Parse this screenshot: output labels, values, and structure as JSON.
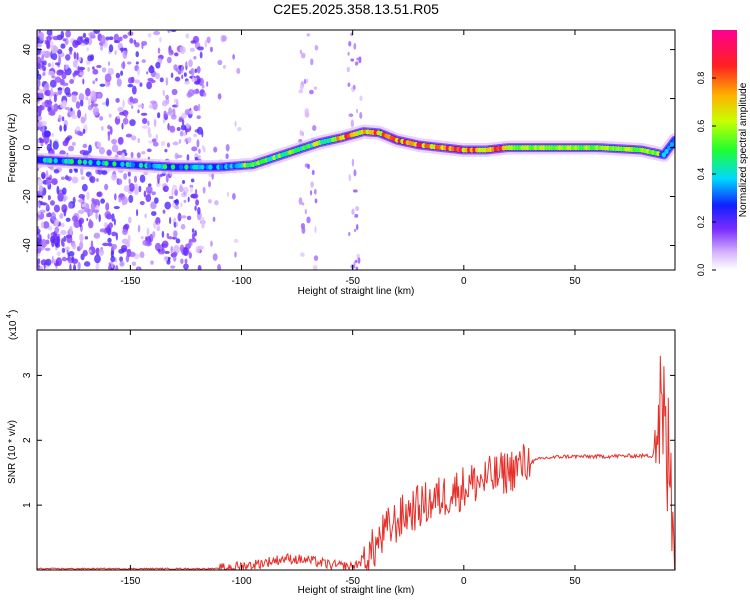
{
  "title": "C2E5.2025.358.13.51.R05",
  "chart_data": [
    {
      "type": "heatmap",
      "xlabel": "Height of straight line (km)",
      "ylabel": "Frequency (Hz)",
      "xlim": [
        -192,
        95
      ],
      "ylim": [
        -50,
        48
      ],
      "xticks": [
        "-150",
        "-100",
        "-50",
        "0",
        "50"
      ],
      "yticks": [
        "-40",
        "-20",
        "0",
        "20",
        "40"
      ],
      "colorbar": {
        "label": "Normalized spectral amplitude",
        "range": [
          0,
          1
        ],
        "ticks": [
          "0.0",
          "0.2",
          "0.4",
          "0.6",
          "0.8"
        ]
      },
      "ridge": {
        "x": [
          -192,
          -170,
          -150,
          -130,
          -110,
          -95,
          -85,
          -75,
          -65,
          -55,
          -45,
          -38,
          -30,
          -20,
          -10,
          0,
          10,
          20,
          40,
          60,
          80,
          90,
          95
        ],
        "y": [
          -5,
          -6,
          -7,
          -8,
          -8,
          -7,
          -4,
          -1,
          2,
          4,
          6.5,
          6,
          3,
          1,
          0,
          -1,
          -1,
          0,
          0,
          0,
          -1,
          -3,
          3
        ]
      }
    },
    {
      "type": "line",
      "xlabel": "Height of straight line (km)",
      "ylabel": "SNR (10 * v/v)",
      "multiplier_label": "(x10",
      "multiplier_exp": "4",
      "xlim": [
        -192,
        95
      ],
      "ylim": [
        0,
        3.7
      ],
      "xticks": [
        "-150",
        "-100",
        "-50",
        "0",
        "50"
      ],
      "yticks": [
        "1",
        "2",
        "3"
      ],
      "color": "#e8302a",
      "envelope": {
        "x": [
          -192,
          -110,
          -95,
          -80,
          -70,
          -60,
          -50,
          -42,
          -35,
          -25,
          -15,
          -5,
          5,
          15,
          25,
          35,
          45,
          60,
          75,
          85,
          88,
          92,
          95
        ],
        "y": [
          0.02,
          0.02,
          0.08,
          0.18,
          0.15,
          0.08,
          0.04,
          0.25,
          0.6,
          0.9,
          1.05,
          1.2,
          1.35,
          1.45,
          1.6,
          1.72,
          1.75,
          1.75,
          1.76,
          1.76,
          2.5,
          1.6,
          0.6
        ]
      }
    }
  ]
}
